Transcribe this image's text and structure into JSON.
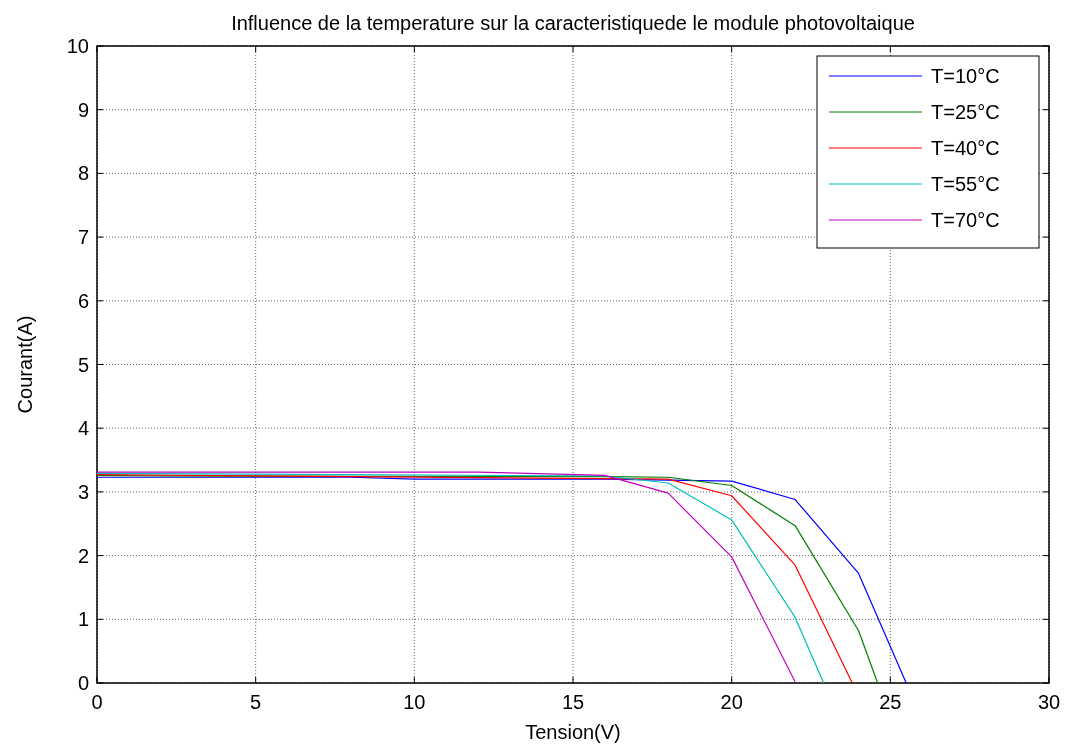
{
  "chart_data": {
    "type": "line",
    "title": "Influence de la temperature sur la caracteristiquede le module photovoltaique",
    "xlabel": "Tension(V)",
    "ylabel": "Courant(A)",
    "xlim": [
      0,
      30
    ],
    "xticks": [
      0,
      5,
      10,
      15,
      20,
      25,
      30
    ],
    "ylim": [
      0,
      10
    ],
    "yticks": [
      0,
      1,
      2,
      3,
      4,
      5,
      6,
      7,
      8,
      9,
      10
    ],
    "grid": true,
    "legend": "top right",
    "series": [
      {
        "name": "T=10°C",
        "color": "#0000ff",
        "x": [
          0,
          8,
          10,
          16,
          20,
          22,
          24,
          25.5
        ],
        "values": [
          3.23,
          3.23,
          3.2,
          3.2,
          3.17,
          2.88,
          1.72,
          0
        ]
      },
      {
        "name": "T=25°C",
        "color": "#007f00",
        "x": [
          0,
          2,
          16,
          18,
          20,
          22,
          24,
          24.6
        ],
        "values": [
          3.26,
          3.25,
          3.24,
          3.23,
          3.1,
          2.47,
          0.82,
          0
        ]
      },
      {
        "name": "T=40°C",
        "color": "#ff0000",
        "x": [
          0,
          18,
          20,
          22,
          23.8
        ],
        "values": [
          3.27,
          3.2,
          2.94,
          1.85,
          0
        ]
      },
      {
        "name": "T=55°C",
        "color": "#00bfbf",
        "x": [
          0,
          16,
          18,
          20,
          22,
          22.9
        ],
        "values": [
          3.29,
          3.25,
          3.14,
          2.56,
          1.03,
          0
        ]
      },
      {
        "name": "T=70°C",
        "color": "#bf00bf",
        "x": [
          0,
          12,
          16,
          18,
          20,
          22
        ],
        "values": [
          3.31,
          3.31,
          3.26,
          2.98,
          1.98,
          0.02
        ]
      }
    ]
  }
}
